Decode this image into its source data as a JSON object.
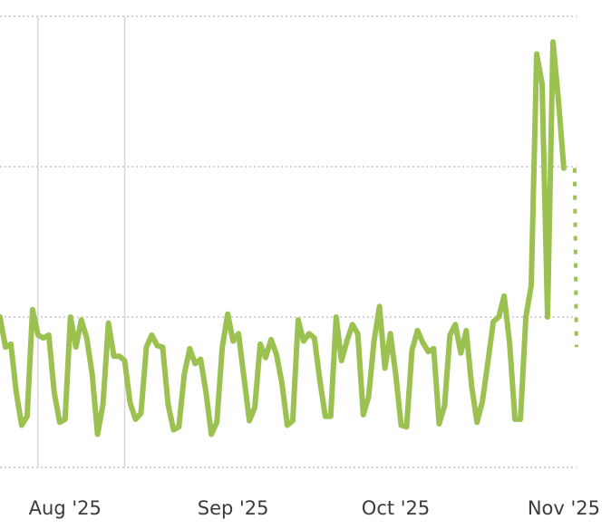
{
  "chart_data": {
    "type": "line",
    "title": "",
    "xlabel": "",
    "ylabel": "",
    "x_tick_labels": [
      "Aug '25",
      "Sep '25",
      "Oct '25",
      "Nov '25"
    ],
    "y_ticks": [
      0,
      1,
      2,
      3
    ],
    "ylim": [
      0,
      3
    ],
    "grid": {
      "horizontal": true,
      "vertical": false
    },
    "legend": "none",
    "colors": {
      "series": "#9bc151",
      "grid": "#c4c4c4",
      "marker_line": "#d6d6d6",
      "text": "#3b3b3b"
    },
    "day_of_month_ticks": [
      1,
      1,
      1,
      1
    ],
    "vertical_marker_dates": [
      "2025-07-27",
      "2025-08-12"
    ],
    "series": [
      {
        "start_date": "2025-07-20",
        "values": [
          1.0,
          0.8,
          0.82,
          0.5,
          0.28,
          0.34,
          1.05,
          0.88,
          0.86,
          0.88,
          0.5,
          0.3,
          0.32,
          1.0,
          0.8,
          0.98,
          0.86,
          0.62,
          0.22,
          0.42,
          0.96,
          0.74,
          0.74,
          0.71,
          0.43,
          0.32,
          0.36,
          0.8,
          0.88,
          0.81,
          0.8,
          0.42,
          0.25,
          0.27,
          0.62,
          0.79,
          0.69,
          0.72,
          0.5,
          0.22,
          0.3,
          0.8,
          1.02,
          0.84,
          0.89,
          0.6,
          0.31,
          0.4,
          0.82,
          0.73,
          0.85,
          0.75,
          0.56,
          0.28,
          0.31,
          0.98,
          0.84,
          0.89,
          0.86,
          0.58,
          0.34,
          0.34,
          1.0,
          0.71,
          0.84,
          0.95,
          0.89,
          0.35,
          0.47,
          0.84,
          1.07,
          0.66,
          0.89,
          0.62,
          0.28,
          0.27,
          0.78,
          0.91,
          0.83,
          0.77,
          0.79,
          0.29,
          0.41,
          0.88,
          0.95,
          0.76,
          0.91,
          0.54,
          0.3,
          0.44,
          0.7,
          0.97,
          1.0,
          1.14,
          0.83,
          0.32,
          0.32,
          1.0,
          1.21,
          2.75,
          2.55,
          1.0,
          2.83,
          2.45,
          1.99
        ]
      }
    ],
    "partial_period": {
      "start_date": "2025-11-03",
      "values": [
        1.99,
        0.8
      ]
    }
  }
}
